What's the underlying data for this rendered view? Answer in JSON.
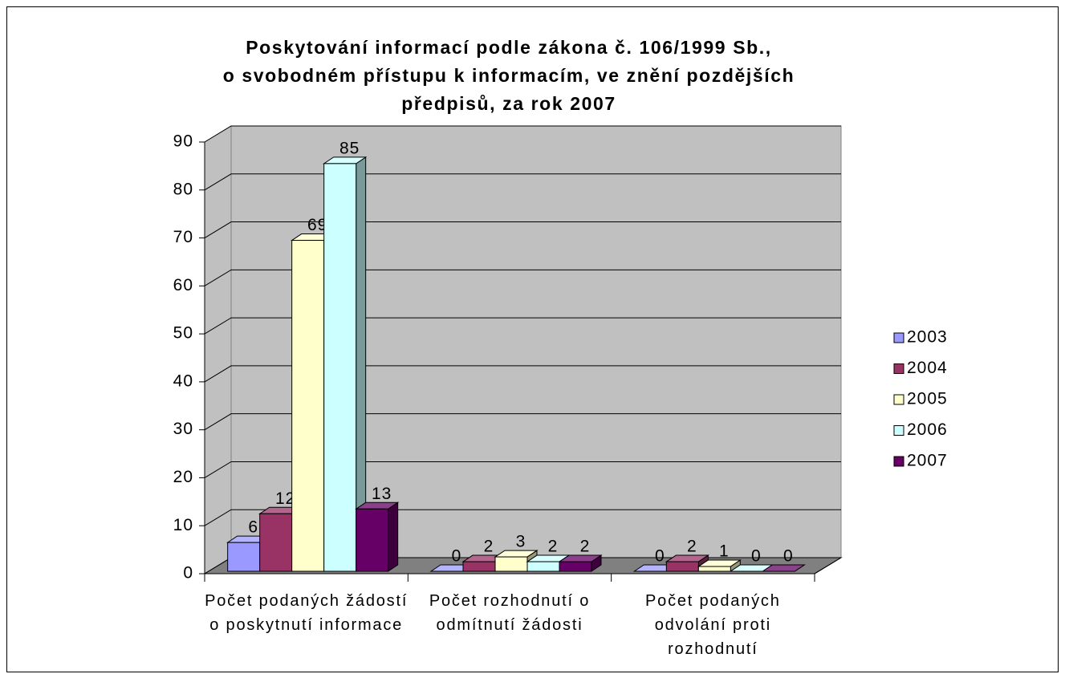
{
  "chart_data": {
    "type": "bar3d",
    "title": [
      "Poskytování informací podle zákona č. 106/1999 Sb.,",
      "o svobodném přístupu k informacím, ve znění pozdějších",
      "předpisů, za rok 2007"
    ],
    "categories": [
      "Počet podaných žádostí o poskytnutí informace",
      "Počet rozhodnutí o odmítnutí žádosti",
      "Počet podaných odvolání proti rozhodnutí"
    ],
    "series": [
      {
        "name": "2003",
        "color": "#9999ff",
        "values": [
          6,
          0,
          0
        ]
      },
      {
        "name": "2004",
        "color": "#993366",
        "values": [
          12,
          2,
          2
        ]
      },
      {
        "name": "2005",
        "color": "#ffffcc",
        "values": [
          69,
          3,
          1
        ]
      },
      {
        "name": "2006",
        "color": "#ccffff",
        "values": [
          85,
          2,
          0
        ]
      },
      {
        "name": "2007",
        "color": "#660066",
        "values": [
          13,
          2,
          0
        ]
      }
    ],
    "ylim": [
      0,
      90
    ],
    "yticks": [
      0,
      10,
      20,
      30,
      40,
      50,
      60,
      70,
      80,
      90
    ],
    "grid": true,
    "legend": "right",
    "data_labels": true
  }
}
